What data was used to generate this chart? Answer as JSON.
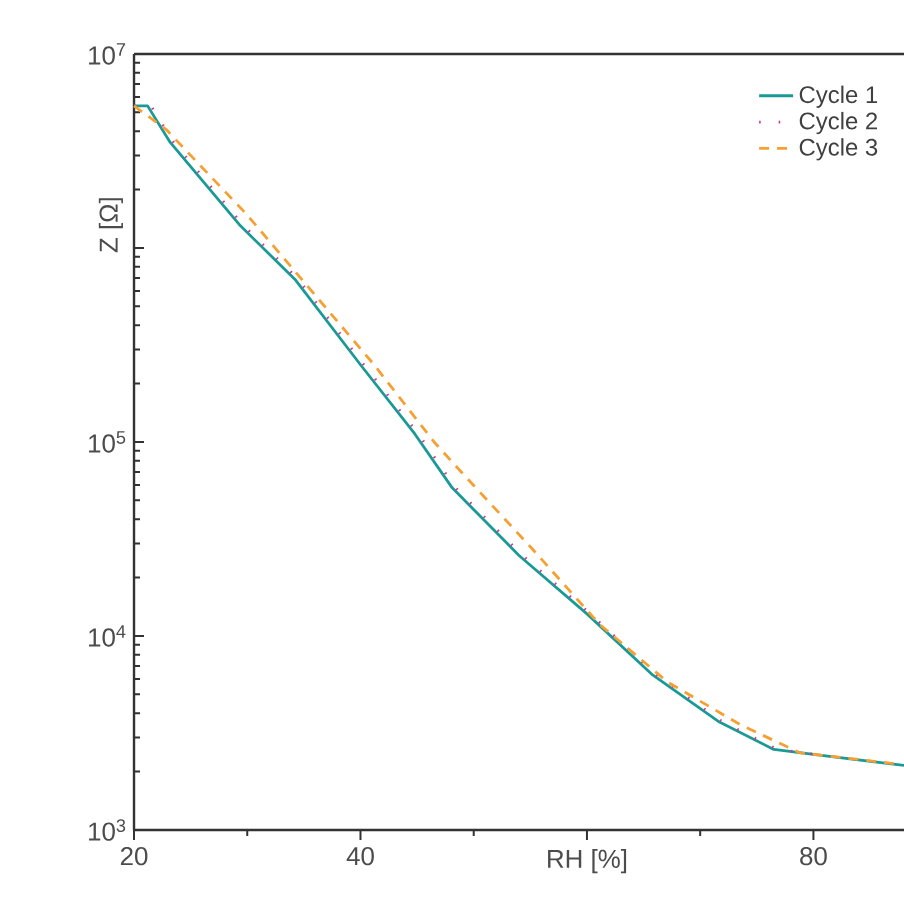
{
  "chart_data": {
    "type": "line",
    "xlabel": "RH [%]",
    "ylabel": "Z [Ω]",
    "log": "y",
    "xlim": [
      20,
      88
    ],
    "ylim": [
      1000,
      10000000
    ],
    "xticks": [
      20,
      40,
      {
        "value": 60,
        "label": null
      },
      80
    ],
    "yticks": [
      {
        "value": 1000,
        "label": "10$^{3}$"
      },
      {
        "value": 10000,
        "label": "10$^{4}$"
      },
      {
        "value": 100000,
        "label": "10$^{5}$"
      },
      {
        "value": 1000000,
        "label": null
      },
      {
        "value": 10000000,
        "label": "10$^{7}$"
      }
    ],
    "legend": "top right",
    "grid": false,
    "series": [
      {
        "name": "Cycle 1",
        "color": "#1a9a96",
        "line_style": "solid",
        "x": [
          20,
          21.2,
          23.2,
          29.4,
          34.2,
          40,
          44.8,
          48.1,
          54,
          60,
          65.8,
          71.7,
          76.5,
          80,
          88
        ],
        "values": [
          5400000,
          5400000,
          3500000,
          1300000,
          690000,
          250000,
          110000,
          58000,
          26000,
          13000,
          6300,
          3600,
          2600,
          2450,
          2150
        ]
      },
      {
        "name": "Cycle 2",
        "color": "#d0388f",
        "line_style": "dotted",
        "x": [
          20,
          21.5,
          23.5,
          29.7,
          34.5,
          40.3,
          45.1,
          48.4,
          54.3,
          60.3,
          66.1,
          72,
          76.8,
          80.3
        ],
        "values": [
          5400000,
          5400000,
          3500000,
          1300000,
          690000,
          250000,
          110000,
          58000,
          26000,
          13000,
          6300,
          3600,
          2600,
          2450
        ]
      },
      {
        "name": "Cycle 3",
        "color": "#f5a033",
        "line_style": "dashed",
        "x": [
          20,
          22.8,
          29.9,
          35.9,
          41.2,
          46.5,
          49,
          55.2,
          61.1,
          67.1,
          73.5,
          78.8,
          87.1
        ],
        "values": [
          5400000,
          4100000,
          1500000,
          580000,
          250000,
          100000,
          69000,
          28000,
          11500,
          5800,
          3500,
          2500,
          2200
        ]
      }
    ]
  }
}
